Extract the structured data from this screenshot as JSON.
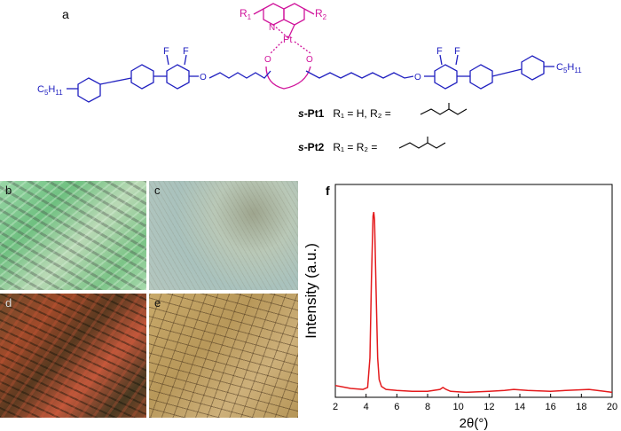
{
  "panels": {
    "a": "a",
    "b": "b",
    "c": "c",
    "d": "d",
    "e": "e",
    "f": "f"
  },
  "structure": {
    "r1": "R",
    "r1_sub": "1",
    "r2": "R",
    "r2_sub": "2",
    "n": "N",
    "pt": "Pt",
    "o": "O",
    "f": "F",
    "c5h11": "C",
    "c5h11_sub1": "5",
    "c5h11_h": "H",
    "c5h11_sub2": "11",
    "colors": {
      "core": "#d0149b",
      "mesogen": "#2020c0",
      "text": "#000000"
    }
  },
  "compounds": [
    {
      "name_prefix": "s",
      "name_main": "-Pt1",
      "def": "R₁ = H, R₂ ="
    },
    {
      "name_prefix": "s",
      "name_main": "-Pt2",
      "def": "R₁ = R₂ ="
    }
  ],
  "chart_data": {
    "type": "line",
    "xlabel": "2θ(°)",
    "ylabel": "Intensity (a.u.)",
    "xlim": [
      2,
      20
    ],
    "xticks": [
      2,
      4,
      6,
      8,
      10,
      12,
      14,
      16,
      18,
      20
    ],
    "ylim": [
      0,
      1.08
    ],
    "grid": false,
    "series": [
      {
        "color": "#e41a1c",
        "x": [
          2.0,
          3.0,
          3.8,
          4.1,
          4.25,
          4.35,
          4.45,
          4.5,
          4.55,
          4.65,
          4.75,
          4.85,
          5.0,
          5.3,
          6.0,
          7.0,
          8.0,
          8.8,
          9.0,
          9.2,
          9.5,
          10.5,
          12.0,
          13.0,
          13.6,
          14.5,
          16.0,
          17.0,
          18.5,
          19.5,
          20.0
        ],
        "y": [
          0.06,
          0.045,
          0.04,
          0.05,
          0.2,
          0.6,
          0.92,
          0.94,
          0.9,
          0.55,
          0.2,
          0.09,
          0.055,
          0.04,
          0.035,
          0.03,
          0.03,
          0.04,
          0.05,
          0.04,
          0.03,
          0.025,
          0.03,
          0.035,
          0.04,
          0.035,
          0.03,
          0.035,
          0.04,
          0.03,
          0.025
        ]
      }
    ]
  }
}
